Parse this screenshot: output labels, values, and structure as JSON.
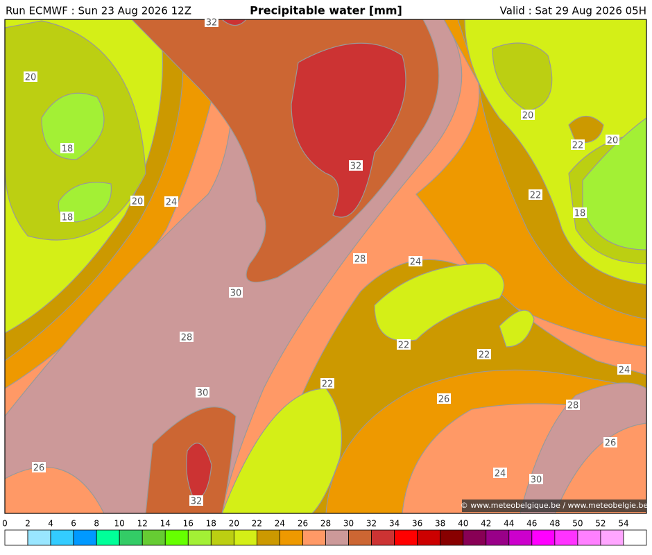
{
  "header": {
    "run": "Run ECMWF : Sun 23 Aug 2026 12Z",
    "title": "Precipitable water [mm]",
    "valid": "Valid : Sat 29 Aug 2026 05H"
  },
  "contour_labels": [
    "32",
    "20",
    "18",
    "20",
    "18",
    "24",
    "32",
    "20",
    "22",
    "20",
    "22",
    "18",
    "28",
    "24",
    "30",
    "28",
    "22",
    "22",
    "24",
    "22",
    "30",
    "26",
    "28",
    "26",
    "26",
    "24",
    "30",
    "32"
  ],
  "credit": "© www.meteobelgique.be / www.meteobelgie.be",
  "colorbar": {
    "labels": [
      "0",
      "2",
      "4",
      "6",
      "8",
      "10",
      "12",
      "14",
      "16",
      "18",
      "20",
      "22",
      "24",
      "26",
      "28",
      "30",
      "32",
      "34",
      "36",
      "38",
      "40",
      "42",
      "44",
      "46",
      "48",
      "50",
      "52",
      "54"
    ],
    "colors": [
      "#ffffff",
      "#99e6ff",
      "#33ccff",
      "#0099ff",
      "#00ff99",
      "#33cc66",
      "#66cc33",
      "#66ff00",
      "#a3f035",
      "#bccf12",
      "#d4ef17",
      "#cc9900",
      "#ee9900",
      "#ff9966",
      "#cc9999",
      "#cc6633",
      "#cc3333",
      "#ff0000",
      "#cc0000",
      "#880000",
      "#880055",
      "#990088",
      "#cc00cc",
      "#ff00ff",
      "#ff33ff",
      "#ff80ff",
      "#ffa6ff",
      "#ffffff"
    ]
  }
}
